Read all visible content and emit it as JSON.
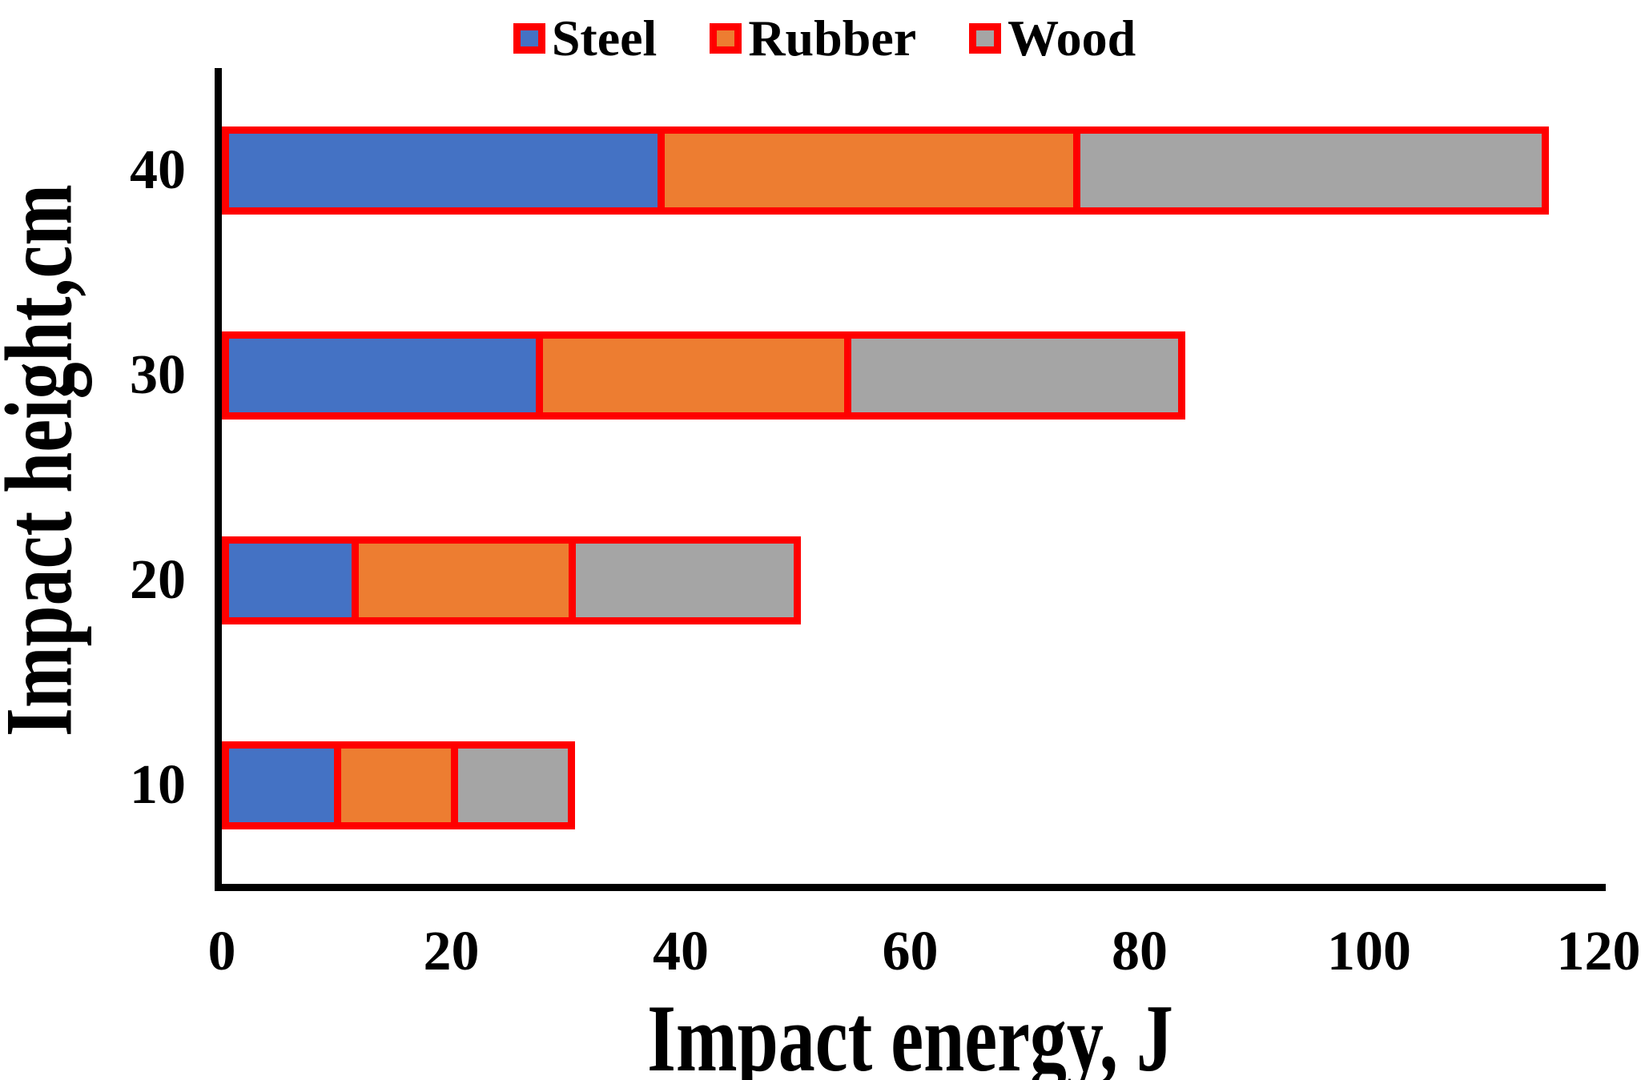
{
  "chart_data": {
    "type": "bar",
    "orientation": "horizontal",
    "stacked": true,
    "title": "",
    "xlabel": "Impact energy, J",
    "ylabel": "Impact height,cm",
    "xlim": [
      0,
      120
    ],
    "xticks": [
      "0",
      "20",
      "40",
      "60",
      "80",
      "100",
      "120"
    ],
    "categories_top_to_bottom": [
      "40",
      "30",
      "20",
      "10"
    ],
    "series": [
      {
        "name": "Steel",
        "color": "#4472C4",
        "values": [
          38.4,
          27.8,
          11.6,
          10.2
        ]
      },
      {
        "name": "Rubber",
        "color": "#ED7D31",
        "values": [
          36.6,
          27.3,
          19.4,
          10.6
        ]
      },
      {
        "name": "Wood",
        "color": "#A5A5A5",
        "values": [
          40.7,
          28.9,
          19.5,
          10.0
        ]
      }
    ],
    "totals": [
      115.7,
      84.0,
      50.5,
      30.8
    ],
    "legend_position": "top-center",
    "grid": false,
    "bar_border_color": "#FF0000",
    "axis_color": "#000000",
    "background": "#FFFFFF"
  }
}
